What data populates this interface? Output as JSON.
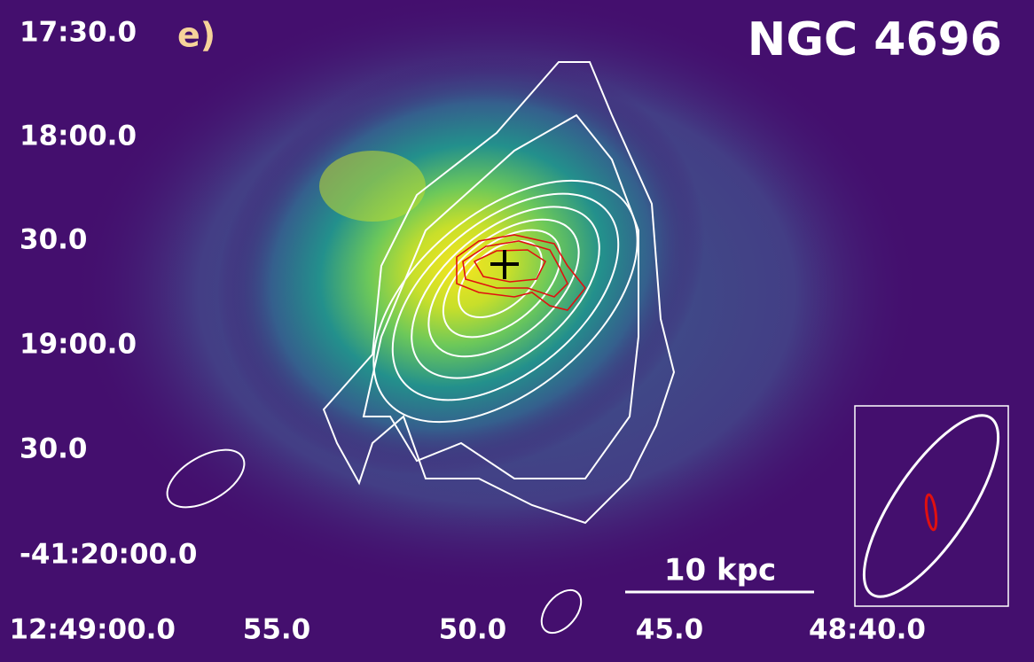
{
  "panel_label": "e)",
  "title": "NGC 4696",
  "y_axis_labels": [
    "17:30.0",
    "18:00.0",
    "30.0",
    "19:00.0",
    "30.0",
    "-41:20:00.0"
  ],
  "x_axis_labels": [
    "12:49:00.0",
    "55.0",
    "50.0",
    "45.0",
    "48:40.0"
  ],
  "scale_bar": "10 kpc"
}
